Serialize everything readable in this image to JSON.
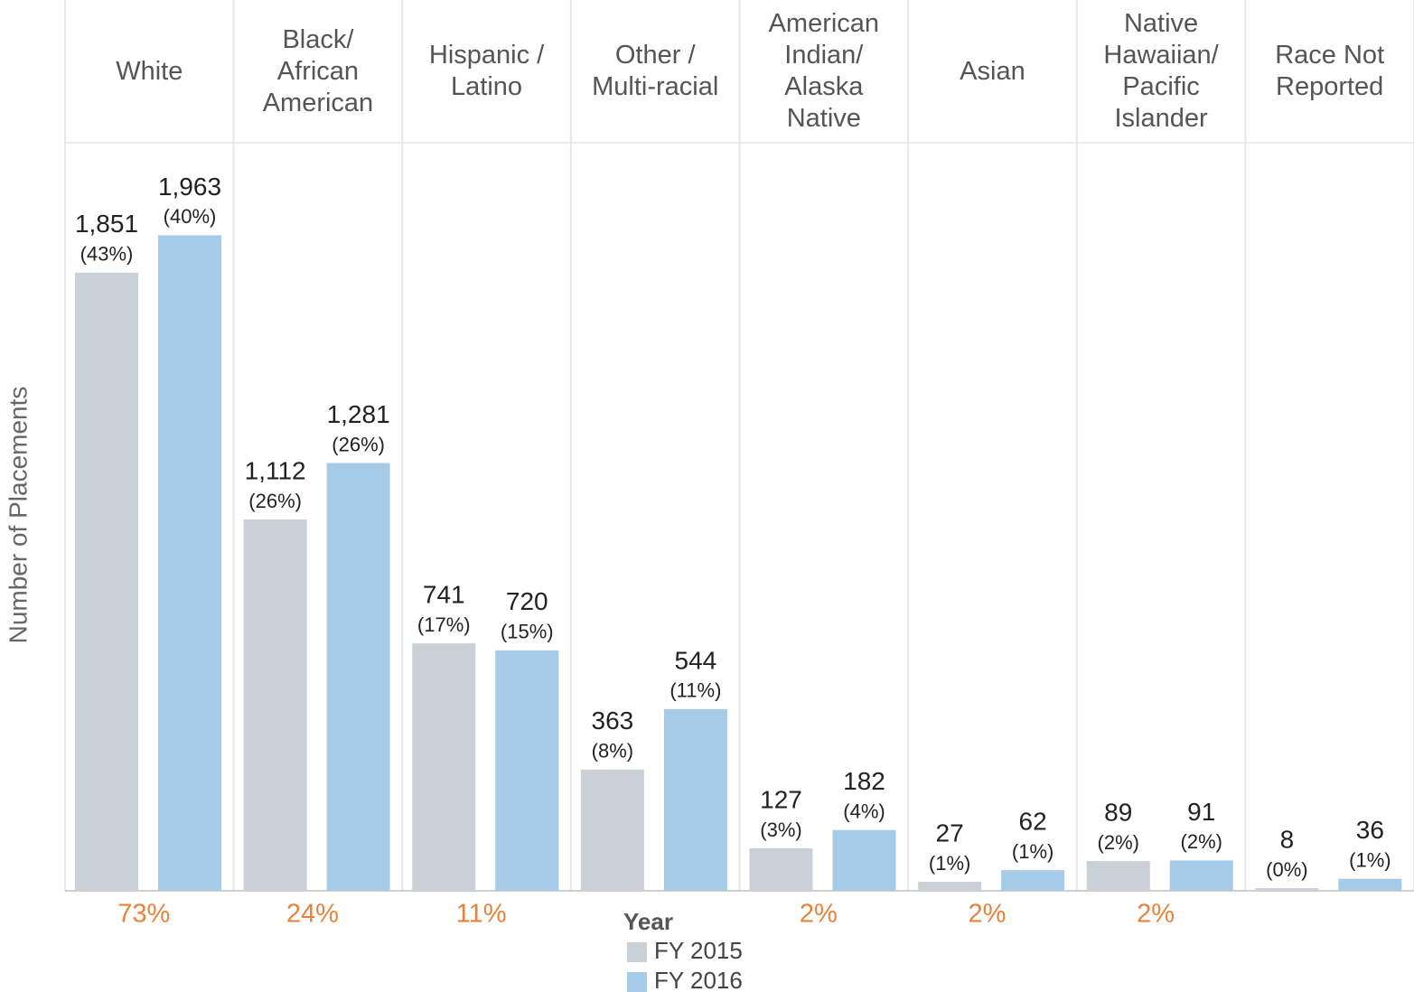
{
  "chart_data": {
    "type": "bar",
    "y_axis_label": "Number of Placements",
    "categories": [
      "White",
      "Black/\nAfrican\nAmerican",
      "Hispanic /\nLatino",
      "Other /\nMulti-racial",
      "American\nIndian/\nAlaska\nNative",
      "Asian",
      "Native\nHawaiian/\nPacific\nIslander",
      "Race Not\nReported"
    ],
    "ylim": [
      0,
      2240
    ],
    "series": [
      {
        "name": "FY 2015",
        "color": "#c9d0d8",
        "values": [
          1851,
          1112,
          741,
          363,
          127,
          27,
          89,
          8
        ],
        "value_labels": [
          "1,851",
          "1,112",
          "741",
          "363",
          "127",
          "27",
          "89",
          "8"
        ],
        "percent_labels": [
          "(43%)",
          "(26%)",
          "(17%)",
          "(8%)",
          "(3%)",
          "(1%)",
          "(2%)",
          "(0%)"
        ]
      },
      {
        "name": "FY 2016",
        "color": "#a5cbe8",
        "values": [
          1963,
          1281,
          720,
          544,
          182,
          62,
          91,
          36
        ],
        "value_labels": [
          "1,963",
          "1,281",
          "720",
          "544",
          "182",
          "62",
          "91",
          "36"
        ],
        "percent_labels": [
          "(40%)",
          "(26%)",
          "(15%)",
          "(11%)",
          "(4%)",
          "(1%)",
          "(2%)",
          "(1%)"
        ]
      }
    ],
    "footer_labels": [
      "73%",
      "24%",
      "11%",
      null,
      "2%",
      "2%",
      "2%",
      null
    ],
    "footer_color": "#e8823a",
    "legend_title": "Year"
  }
}
